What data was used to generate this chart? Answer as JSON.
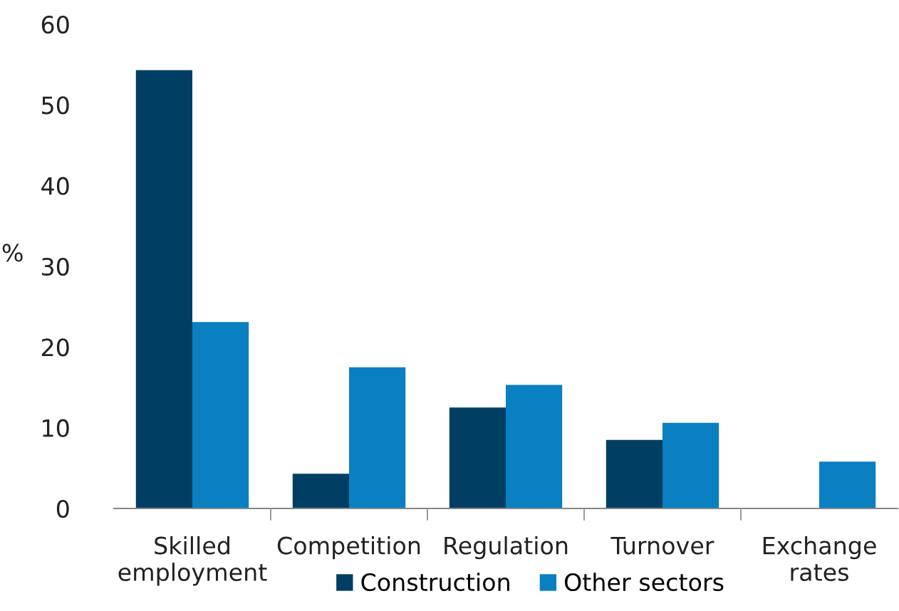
{
  "chart_data": {
    "type": "bar",
    "ylabel": "%",
    "categories": [
      "Skilled\nemployment",
      "Competition",
      "Regulation",
      "Turnover",
      "Exchange\nrates"
    ],
    "series": [
      {
        "name": "Construction",
        "color": "#003f63",
        "values": [
          54.3,
          4.3,
          12.5,
          8.5,
          0
        ]
      },
      {
        "name": "Other sectors",
        "color": "#0a7fc1",
        "values": [
          23.1,
          17.5,
          15.3,
          10.6,
          5.8
        ]
      }
    ],
    "ylim": [
      0,
      60
    ],
    "yticks": [
      0,
      10,
      20,
      30,
      40,
      50,
      60
    ],
    "grid": false,
    "legend": "bottom"
  }
}
